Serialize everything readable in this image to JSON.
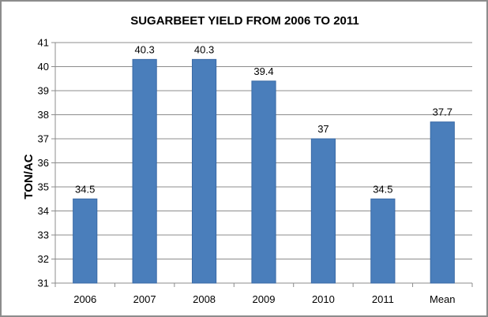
{
  "chart_data": {
    "type": "bar",
    "title": "SUGARBEET YIELD FROM 2006 TO 2011",
    "xlabel": "",
    "ylabel": "TON/AC",
    "categories": [
      "2006",
      "2007",
      "2008",
      "2009",
      "2010",
      "2011",
      "Mean"
    ],
    "series": [
      {
        "values": [
          34.5,
          40.3,
          40.3,
          39.4,
          37,
          34.5,
          37.7
        ]
      }
    ],
    "data_labels": [
      "34.5",
      "40.3",
      "40.3",
      "39.4",
      "37",
      "34.5",
      "37.7"
    ],
    "ylim": [
      31,
      41
    ],
    "yticks": [
      "31",
      "32",
      "33",
      "34",
      "35",
      "36",
      "37",
      "38",
      "39",
      "40",
      "41"
    ],
    "grid": true,
    "legend": "none",
    "colors": {
      "bar_fill": "#4a7ebb",
      "bar_stroke": "#3a6aa6",
      "grid": "#8c8c8c",
      "axis": "#8c8c8c"
    }
  }
}
